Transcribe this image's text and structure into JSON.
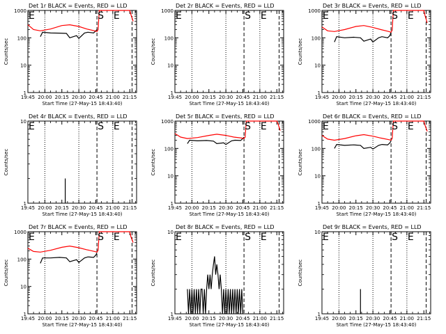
{
  "colors": {
    "events": "#000000",
    "lld": "#ff0000",
    "axis": "#000000",
    "background": "#ffffff"
  },
  "x_ticks": [
    "19:45",
    "20:00",
    "20:15",
    "20:30",
    "20:45",
    "21:00",
    "21:15"
  ],
  "x_label": "Start Time (27-May-15 18:43:40)",
  "markers": {
    "E": "E",
    "S": "S"
  },
  "chart_data": [
    {
      "type": "line",
      "title": "Det 1r BLACK = Events, RED = LLD",
      "ylabel": "Counts/sec",
      "yscale": "log",
      "ylim": [
        1,
        1000
      ],
      "ytick_labels": [
        "1",
        "10",
        "100",
        "1000"
      ],
      "xlim": [
        "19:45",
        "21:21"
      ],
      "xtick_labels": [
        "19:45",
        "20:00",
        "20:15",
        "20:30",
        "20:45",
        "21:00",
        "21:15"
      ],
      "markers": [
        {
          "label": "E",
          "x": "19:45"
        },
        {
          "label": "S",
          "x": "20:46"
        },
        {
          "label": "E",
          "x": "21:00"
        }
      ],
      "series": [
        {
          "color": "#000000",
          "x": [
            "19:56",
            "19:58",
            "20:05",
            "20:13",
            "20:19",
            "20:22",
            "20:28",
            "20:30",
            "20:35",
            "20:38",
            "20:43",
            "20:45",
            "20:46"
          ],
          "y": [
            110,
            160,
            150,
            148,
            145,
            100,
            120,
            95,
            150,
            160,
            150,
            180,
            200
          ]
        },
        {
          "color": "#ff0000",
          "x": [
            "19:45",
            "19:50",
            "19:56",
            "20:05",
            "20:15",
            "20:22",
            "20:30",
            "20:37",
            "20:44",
            "20:46",
            "20:47",
            "20:48",
            "21:15",
            "21:16",
            "21:18"
          ],
          "y": [
            300,
            200,
            180,
            210,
            280,
            300,
            260,
            210,
            180,
            170,
            200,
            1000,
            1000,
            700,
            400
          ]
        }
      ]
    },
    {
      "type": "line",
      "title": "Det 2r BLACK = Events, RED = LLD",
      "ylabel": "Counts/sec",
      "yscale": "log",
      "ylim": [
        1,
        1000
      ],
      "ytick_labels": [
        "1",
        "10",
        "100",
        "1000"
      ],
      "xlim": [
        "19:45",
        "21:21"
      ],
      "xtick_labels": [
        "19:45",
        "20:00",
        "20:15",
        "20:30",
        "20:45",
        "21:00",
        "21:15"
      ],
      "markers": [
        {
          "label": "E",
          "x": "19:45"
        },
        {
          "label": "S",
          "x": "20:46"
        },
        {
          "label": "E",
          "x": "21:00"
        }
      ],
      "series": []
    },
    {
      "type": "line",
      "title": "Det 3r BLACK = Events, RED = LLD",
      "ylabel": "Counts/sec",
      "yscale": "log",
      "ylim": [
        1,
        1000
      ],
      "ytick_labels": [
        "1",
        "10",
        "100",
        "1000"
      ],
      "xlim": [
        "19:45",
        "21:21"
      ],
      "xtick_labels": [
        "19:45",
        "20:00",
        "20:15",
        "20:30",
        "20:45",
        "21:00",
        "21:15"
      ],
      "markers": [
        {
          "label": "E",
          "x": "19:45"
        },
        {
          "label": "S",
          "x": "20:46"
        },
        {
          "label": "E",
          "x": "21:00"
        }
      ],
      "series": [
        {
          "color": "#000000",
          "x": [
            "19:56",
            "19:58",
            "20:05",
            "20:13",
            "20:19",
            "20:22",
            "20:28",
            "20:30",
            "20:35",
            "20:38",
            "20:43",
            "20:45",
            "20:46"
          ],
          "y": [
            70,
            110,
            100,
            105,
            100,
            75,
            90,
            70,
            100,
            110,
            100,
            120,
            160
          ]
        },
        {
          "color": "#ff0000",
          "x": [
            "19:45",
            "19:50",
            "19:56",
            "20:05",
            "20:15",
            "20:22",
            "20:30",
            "20:37",
            "20:44",
            "20:46",
            "20:47",
            "20:48",
            "21:15",
            "21:16",
            "21:18"
          ],
          "y": [
            250,
            180,
            170,
            200,
            260,
            280,
            240,
            200,
            170,
            160,
            190,
            1000,
            1000,
            650,
            350
          ]
        }
      ]
    },
    {
      "type": "line",
      "title": "Det 4r BLACK = Events, RED = LLD",
      "ylabel": "Counts/sec",
      "yscale": "log",
      "ylim": [
        1,
        10
      ],
      "ytick_labels": [
        "1",
        "10"
      ],
      "xlim": [
        "19:45",
        "21:21"
      ],
      "xtick_labels": [
        "19:45",
        "20:00",
        "20:15",
        "20:30",
        "20:45",
        "21:00",
        "21:15"
      ],
      "markers": [
        {
          "label": "E",
          "x": "19:45"
        },
        {
          "label": "S",
          "x": "20:46"
        },
        {
          "label": "E",
          "x": "21:00"
        }
      ],
      "series": [
        {
          "color": "#000000",
          "x": [
            "20:18",
            "20:18",
            "20:18",
            "20:18"
          ],
          "y": [
            1,
            2,
            2,
            1
          ]
        }
      ]
    },
    {
      "type": "line",
      "title": "Det 5r BLACK = Events, RED = LLD",
      "ylabel": "Counts/sec",
      "yscale": "log",
      "ylim": [
        1,
        1000
      ],
      "ytick_labels": [
        "1",
        "10",
        "100",
        "1000"
      ],
      "xlim": [
        "19:45",
        "21:21"
      ],
      "xtick_labels": [
        "19:45",
        "20:00",
        "20:15",
        "20:30",
        "20:45",
        "21:00",
        "21:15"
      ],
      "markers": [
        {
          "label": "S",
          "x": "20:46"
        },
        {
          "label": "E",
          "x": "21:00"
        }
      ],
      "series": [
        {
          "color": "#000000",
          "x": [
            "19:56",
            "19:58",
            "20:05",
            "20:13",
            "20:19",
            "20:22",
            "20:28",
            "20:30",
            "20:35",
            "20:38",
            "20:43",
            "20:45",
            "20:46"
          ],
          "y": [
            150,
            200,
            190,
            195,
            185,
            150,
            160,
            140,
            190,
            200,
            195,
            230,
            260
          ]
        },
        {
          "color": "#ff0000",
          "x": [
            "19:45",
            "19:50",
            "19:56",
            "20:05",
            "20:15",
            "20:22",
            "20:30",
            "20:37",
            "20:44",
            "20:46",
            "20:47",
            "20:48",
            "21:15",
            "21:16",
            "21:18"
          ],
          "y": [
            350,
            260,
            230,
            250,
            300,
            330,
            300,
            260,
            240,
            230,
            260,
            1000,
            1000,
            800,
            450
          ]
        }
      ]
    },
    {
      "type": "line",
      "title": "Det 6r BLACK = Events, RED = LLD",
      "ylabel": "Counts/sec",
      "yscale": "log",
      "ylim": [
        1,
        1000
      ],
      "ytick_labels": [
        "1",
        "10",
        "100",
        "1000"
      ],
      "xlim": [
        "19:45",
        "21:21"
      ],
      "xtick_labels": [
        "19:45",
        "20:00",
        "20:15",
        "20:30",
        "20:45",
        "21:00",
        "21:15"
      ],
      "markers": [
        {
          "label": "E",
          "x": "19:45"
        },
        {
          "label": "S",
          "x": "20:46"
        },
        {
          "label": "E",
          "x": "21:00"
        }
      ],
      "series": [
        {
          "color": "#000000",
          "x": [
            "19:56",
            "19:58",
            "20:05",
            "20:13",
            "20:19",
            "20:22",
            "20:28",
            "20:30",
            "20:35",
            "20:38",
            "20:43",
            "20:45",
            "20:46"
          ],
          "y": [
            100,
            140,
            130,
            135,
            130,
            100,
            110,
            95,
            130,
            140,
            135,
            160,
            190
          ]
        },
        {
          "color": "#ff0000",
          "x": [
            "19:45",
            "19:50",
            "19:56",
            "20:05",
            "20:15",
            "20:22",
            "20:30",
            "20:37",
            "20:44",
            "20:46",
            "20:47",
            "20:48",
            "21:15",
            "21:16",
            "21:18"
          ],
          "y": [
            300,
            220,
            200,
            230,
            290,
            320,
            280,
            240,
            210,
            200,
            230,
            1000,
            1000,
            700,
            420
          ]
        }
      ]
    },
    {
      "type": "line",
      "title": "Det 7r BLACK = Events, RED = LLD",
      "ylabel": "Counts/sec",
      "yscale": "log",
      "ylim": [
        1,
        1000
      ],
      "ytick_labels": [
        "1",
        "10",
        "100",
        "1000"
      ],
      "xlim": [
        "19:45",
        "21:21"
      ],
      "xtick_labels": [
        "19:45",
        "20:00",
        "20:15",
        "20:30",
        "20:45",
        "21:00",
        "21:15"
      ],
      "markers": [
        {
          "label": "E",
          "x": "19:45"
        },
        {
          "label": "S",
          "x": "20:46"
        },
        {
          "label": "E",
          "x": "21:00"
        }
      ],
      "series": [
        {
          "color": "#000000",
          "x": [
            "19:56",
            "19:58",
            "20:05",
            "20:13",
            "20:19",
            "20:22",
            "20:28",
            "20:30",
            "20:35",
            "20:38",
            "20:43",
            "20:45",
            "20:46"
          ],
          "y": [
            70,
            110,
            110,
            115,
            110,
            80,
            95,
            75,
            110,
            120,
            115,
            140,
            170
          ]
        },
        {
          "color": "#ff0000",
          "x": [
            "19:45",
            "19:50",
            "19:56",
            "20:05",
            "20:15",
            "20:22",
            "20:30",
            "20:37",
            "20:44",
            "20:46",
            "20:47",
            "20:48",
            "21:15",
            "21:16",
            "21:18"
          ],
          "y": [
            250,
            190,
            180,
            210,
            270,
            300,
            260,
            220,
            190,
            180,
            210,
            1000,
            1000,
            650,
            400
          ]
        }
      ]
    },
    {
      "type": "line",
      "title": "Det 8r BLACK = Events, RED = LLD",
      "ylabel": "Counts/sec",
      "yscale": "log",
      "ylim": [
        1,
        10
      ],
      "ytick_labels": [
        "1",
        "10"
      ],
      "xlim": [
        "19:45",
        "21:21"
      ],
      "xtick_labels": [
        "19:45",
        "20:00",
        "20:15",
        "20:30",
        "20:45",
        "21:00",
        "21:15"
      ],
      "markers": [
        {
          "label": "E",
          "x": "19:45"
        },
        {
          "label": "S",
          "x": "20:46"
        },
        {
          "label": "E",
          "x": "21:00"
        }
      ],
      "series": [
        {
          "color": "#000000",
          "x": [
            "19:56",
            "19:57",
            "19:58",
            "19:59",
            "20:00",
            "20:01",
            "20:02",
            "20:03",
            "20:04",
            "20:05",
            "20:06",
            "20:07",
            "20:08",
            "20:09",
            "20:10",
            "20:11",
            "20:12",
            "20:13",
            "20:14",
            "20:15",
            "20:16",
            "20:17",
            "20:18",
            "20:19",
            "20:20",
            "20:21",
            "20:22",
            "20:23",
            "20:24",
            "20:25",
            "20:26",
            "20:27",
            "20:28",
            "20:29",
            "20:30",
            "20:31",
            "20:32",
            "20:33",
            "20:34",
            "20:35",
            "20:36",
            "20:37",
            "20:38",
            "20:39",
            "20:40",
            "20:41",
            "20:42",
            "20:43",
            "20:44",
            "20:45"
          ],
          "y": [
            2,
            1,
            2,
            1,
            2,
            1,
            2,
            1,
            2,
            1,
            2,
            1,
            2,
            2,
            1,
            2,
            1,
            2,
            3,
            2,
            3,
            2,
            3,
            4,
            5,
            3,
            4,
            3,
            2,
            3,
            2,
            1,
            2,
            1,
            2,
            1,
            2,
            1,
            2,
            1,
            2,
            1,
            2,
            1,
            2,
            1,
            2,
            1,
            2,
            1
          ]
        }
      ]
    },
    {
      "type": "line",
      "title": "Det 9r BLACK = Events, RED = LLD",
      "ylabel": "Counts/sec",
      "yscale": "log",
      "ylim": [
        1,
        10
      ],
      "ytick_labels": [
        "1",
        "10"
      ],
      "xlim": [
        "19:45",
        "21:21"
      ],
      "xtick_labels": [
        "19:45",
        "20:00",
        "20:15",
        "20:30",
        "20:45",
        "21:00",
        "21:15"
      ],
      "markers": [
        {
          "label": "E",
          "x": "19:45"
        },
        {
          "label": "S",
          "x": "20:46"
        },
        {
          "label": "E",
          "x": "21:00"
        }
      ],
      "series": [
        {
          "color": "#000000",
          "x": [
            "20:19",
            "20:19",
            "20:19",
            "20:19"
          ],
          "y": [
            1,
            2,
            2,
            1
          ]
        }
      ]
    }
  ]
}
